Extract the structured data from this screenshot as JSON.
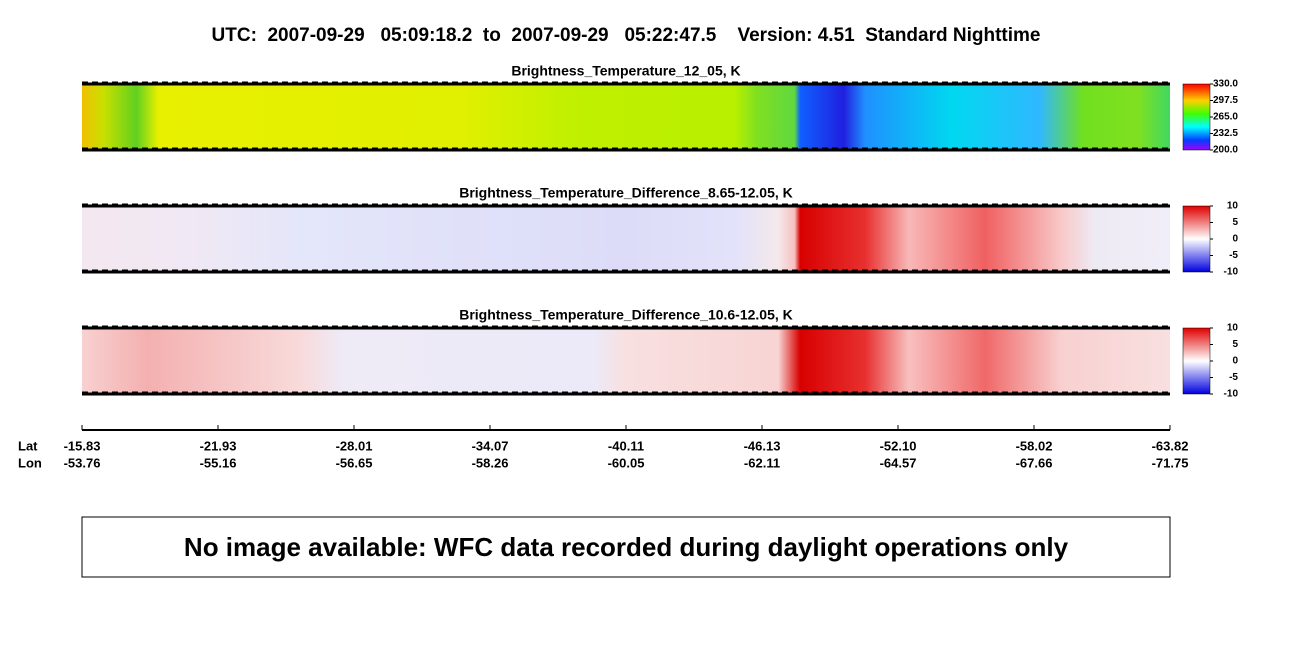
{
  "title": "UTC:  2007-09-29   05:09:18.2  to  2007-09-29   05:22:47.5    Version: 4.51  Standard Nighttime",
  "panels": [
    {
      "title": "Brightness_Temperature_12_05, K",
      "colorbar_ticks": [
        {
          "value": 330,
          "label": "330.0"
        },
        {
          "value": 297.5,
          "label": "297.5"
        },
        {
          "value": 265,
          "label": "265.0"
        },
        {
          "value": 232.5,
          "label": "232.5"
        },
        {
          "value": 200,
          "label": "200.0"
        }
      ]
    },
    {
      "title": "Brightness_Temperature_Difference_8.65-12.05, K",
      "colorbar_ticks": [
        10,
        5,
        0,
        -5,
        -10
      ]
    },
    {
      "title": "Brightness_Temperature_Difference_10.6-12.05, K",
      "colorbar_ticks": [
        10,
        5,
        0,
        -5,
        -10
      ]
    }
  ],
  "axis": {
    "row_labels": [
      "Lat",
      "Lon"
    ],
    "lat": [
      "-15.83",
      "-21.93",
      "-28.01",
      "-34.07",
      "-40.11",
      "-46.13",
      "-52.10",
      "-58.02",
      "-63.82"
    ],
    "lon": [
      "-53.76",
      "-55.16",
      "-56.65",
      "-58.26",
      "-60.05",
      "-62.11",
      "-64.57",
      "-67.66",
      "-71.75"
    ]
  },
  "message": "No image available: WFC data recorded during daylight operations only"
}
